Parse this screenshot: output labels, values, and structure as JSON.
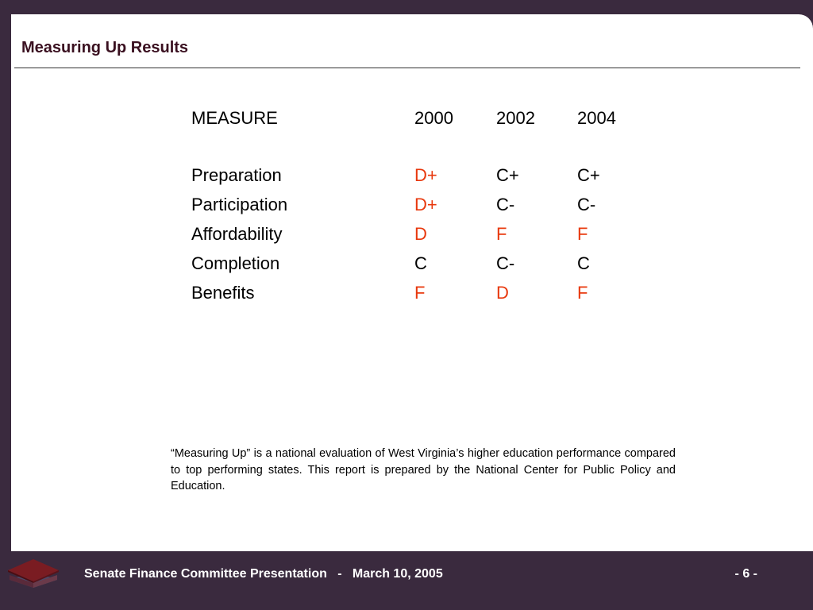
{
  "title": "Measuring Up Results",
  "table": {
    "headers": [
      "MEASURE",
      "2000",
      "2002",
      "2004"
    ],
    "rows": [
      {
        "measure": "Preparation",
        "y2000": "D+",
        "y2002": "C+",
        "y2004": "C+"
      },
      {
        "measure": "Participation",
        "y2000": "D+",
        "y2002": "C-",
        "y2004": "C-"
      },
      {
        "measure": "Affordability",
        "y2000": "D",
        "y2002": "F",
        "y2004": "F"
      },
      {
        "measure": "Completion",
        "y2000": "C",
        "y2002": "C-",
        "y2004": "C"
      },
      {
        "measure": "Benefits",
        "y2000": "F",
        "y2002": "D",
        "y2004": "F"
      }
    ]
  },
  "note": "“Measuring Up” is a national evaluation of West Virginia’s higher education performance compared to top performing states.  This report is prepared by the National Center for Public Policy and Education.",
  "footer": {
    "text": "Senate Finance Committee Presentation   -   March 10, 2005",
    "page": "- 6 -"
  },
  "colors": {
    "background": "#3a2a3e",
    "title": "#3a1020",
    "low_grade": "#e8380d",
    "normal_grade": "#000000",
    "logo_top": "#7a1c22",
    "logo_side": "#4a4a6a"
  },
  "icons": {
    "logo": "mortarboard-cap-icon"
  }
}
